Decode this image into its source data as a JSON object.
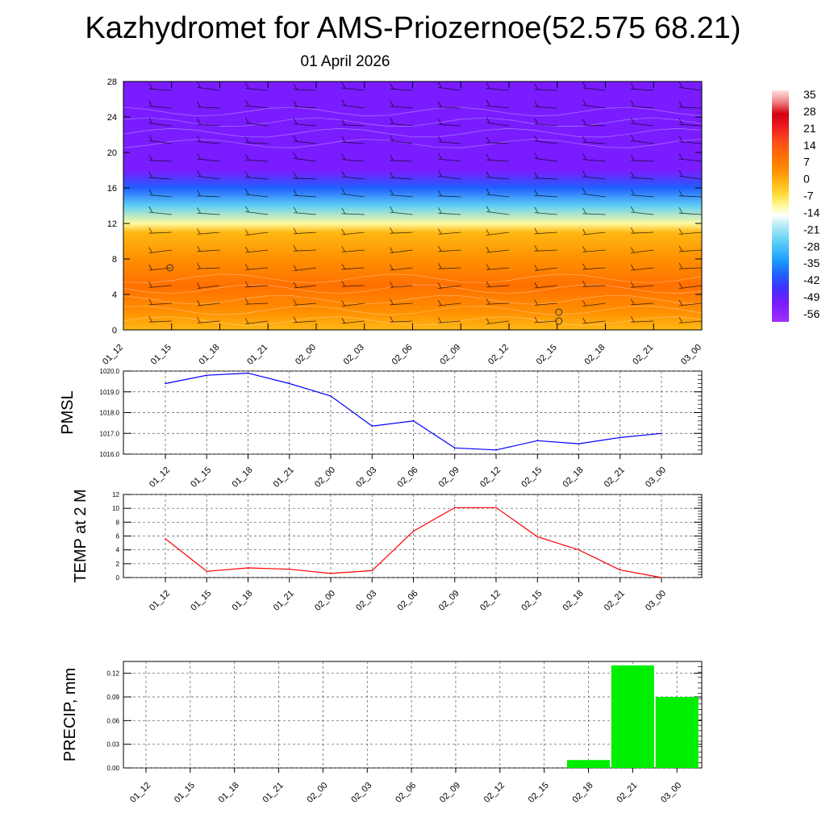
{
  "header": {
    "title": "Kazhydromet for AMS-Priozernoe(52.575 68.21)",
    "subtitle": "01 April 2026"
  },
  "time_labels": [
    "01_12",
    "01_15",
    "01_18",
    "01_21",
    "02_00",
    "02_03",
    "02_06",
    "02_09",
    "02_12",
    "02_15",
    "02_18",
    "02_21",
    "03_00"
  ],
  "chart_data": [
    {
      "type": "heatmap",
      "name": "temperature-wind-profile",
      "categories": [
        "01_12",
        "01_15",
        "01_18",
        "01_21",
        "02_00",
        "02_03",
        "02_06",
        "02_09",
        "02_12",
        "02_15",
        "02_18",
        "02_21",
        "03_00"
      ],
      "yticks": [
        0,
        4,
        8,
        12,
        16,
        20,
        24,
        28
      ],
      "ylim": [
        0,
        28
      ],
      "colorbar_labels": [
        "35",
        "28",
        "21",
        "14",
        "7",
        "0",
        "-7",
        "-14",
        "-21",
        "-28",
        "-35",
        "-42",
        "-49",
        "-56"
      ],
      "colorbar_range": [
        -60,
        38
      ],
      "layers": [
        {
          "level": 0,
          "temp": -2
        },
        {
          "level": 2,
          "temp": 3
        },
        {
          "level": 5,
          "temp": 6
        },
        {
          "level": 8,
          "temp": 4
        },
        {
          "level": 11,
          "temp": -3
        },
        {
          "level": 12,
          "temp": -14
        },
        {
          "level": 14,
          "temp": -30
        },
        {
          "level": 16,
          "temp": -42
        },
        {
          "level": 18,
          "temp": -55
        },
        {
          "level": 20,
          "temp": -52
        },
        {
          "level": 28,
          "temp": -52
        }
      ]
    },
    {
      "type": "line",
      "name": "pmsl",
      "ylabel": "PMSL",
      "categories": [
        "01_12",
        "01_15",
        "01_18",
        "01_21",
        "02_00",
        "02_03",
        "02_06",
        "02_09",
        "02_12",
        "02_15",
        "02_18",
        "02_21",
        "03_00"
      ],
      "values": [
        1019.4,
        1019.8,
        1019.9,
        1019.4,
        1018.8,
        1017.35,
        1017.6,
        1016.3,
        1016.2,
        1016.65,
        1016.5,
        1016.8,
        1017.0
      ],
      "ylim": [
        1016.0,
        1020.0
      ],
      "yticks": [
        "1016.0",
        "1017.0",
        "1018.0",
        "1019.0",
        "1020.0"
      ],
      "color": "#0000ff"
    },
    {
      "type": "line",
      "name": "temp2m",
      "ylabel": "TEMP at 2 M",
      "categories": [
        "01_12",
        "01_15",
        "01_18",
        "01_21",
        "02_00",
        "02_03",
        "02_06",
        "02_09",
        "02_12",
        "02_15",
        "02_18",
        "02_21",
        "03_00"
      ],
      "values": [
        5.6,
        0.9,
        1.4,
        1.2,
        0.6,
        1.0,
        6.7,
        10.1,
        10.1,
        5.9,
        4.0,
        1.1,
        0.0
      ],
      "ylim": [
        0,
        12
      ],
      "yticks": [
        "0",
        "2",
        "4",
        "6",
        "8",
        "10",
        "12"
      ],
      "color": "#ff0000"
    },
    {
      "type": "bar",
      "name": "precip",
      "ylabel": "PRECIP, mm",
      "categories": [
        "01_12",
        "01_15",
        "01_18",
        "01_21",
        "02_00",
        "02_03",
        "02_06",
        "02_09",
        "02_12",
        "02_15",
        "02_18",
        "02_21",
        "03_00"
      ],
      "values": [
        0,
        0,
        0,
        0,
        0,
        0,
        0,
        0,
        0,
        0,
        0.01,
        0.13,
        0.09
      ],
      "ylim": [
        0,
        0.135
      ],
      "yticks": [
        "0.00",
        "0.03",
        "0.06",
        "0.09",
        "0.12"
      ],
      "color": "#00ee00"
    }
  ]
}
